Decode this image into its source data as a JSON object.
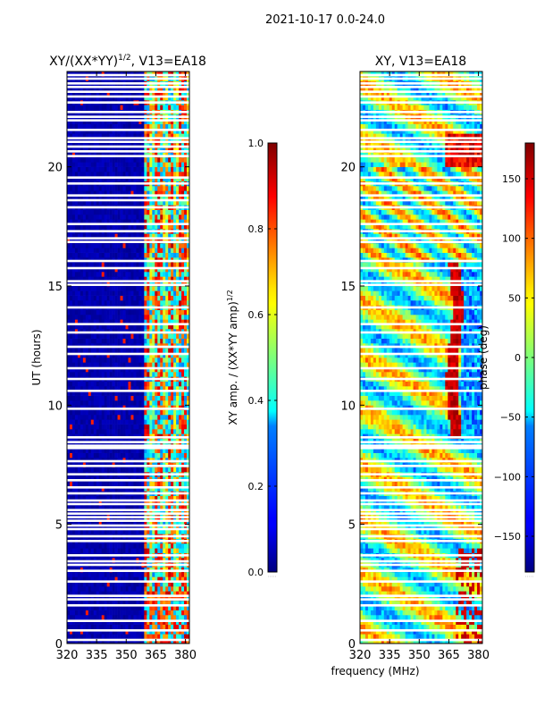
{
  "figure": {
    "suptitle": "2021-10-17 0.0-24.0",
    "xlabel": "frequency (MHz)"
  },
  "chart_data": [
    {
      "type": "heatmap",
      "title_main": "XY/(XX*YY)",
      "title_sup": "1/2",
      "title_tail": ", V13=EA18",
      "xlabel": "",
      "ylabel": "UT (hours)",
      "xlim": [
        320,
        382
      ],
      "ylim": [
        0,
        24
      ],
      "xticks": [
        320,
        335,
        350,
        365,
        380
      ],
      "xtick_labels": [
        "320",
        "335",
        "350",
        "365",
        "380"
      ],
      "yticks": [
        0,
        5,
        10,
        15,
        20
      ],
      "ytick_labels": [
        "0",
        "5",
        "10",
        "15",
        "20"
      ],
      "colormap": "jet",
      "colorbar": {
        "label_main": "XY amp. / (XX*YY amp)",
        "label_sup": "1/2",
        "vmin": 0.0,
        "vmax": 1.0,
        "ticks": [
          0.0,
          0.2,
          0.4,
          0.6,
          0.8,
          1.0
        ],
        "tick_labels": [
          "0.0",
          "0.2",
          "0.4",
          "0.6",
          "0.8",
          "1.0"
        ]
      },
      "description_values": {
        "background_value": 0.0,
        "rfi_band_MHz": [
          359,
          382
        ],
        "rfi_band_value_range": [
          0.3,
          0.9
        ]
      }
    },
    {
      "type": "heatmap",
      "title": "XY, V13=EA18",
      "xlabel": "",
      "ylabel": "",
      "xlim": [
        320,
        382
      ],
      "ylim": [
        0,
        24
      ],
      "xticks": [
        320,
        335,
        350,
        365,
        380
      ],
      "xtick_labels": [
        "320",
        "335",
        "350",
        "365",
        "380"
      ],
      "yticks": [
        0,
        5,
        10,
        15,
        20
      ],
      "ytick_labels": [
        "0",
        "5",
        "10",
        "15",
        "20"
      ],
      "colormap": "jet",
      "colorbar": {
        "label": "phase (deg)",
        "vmin": -180,
        "vmax": 180,
        "ticks": [
          -150,
          -100,
          -50,
          0,
          50,
          100,
          150
        ],
        "tick_labels": [
          "−150",
          "−100",
          "−50",
          "0",
          "50",
          "100",
          "150"
        ]
      },
      "description_values": {
        "phase_range_deg": [
          -180,
          180
        ],
        "ridge_MHz": 368
      }
    }
  ],
  "gap_rows_hours": [
    0.15,
    0.55,
    0.95,
    1.6,
    1.85,
    2.0,
    2.6,
    3.05,
    3.3,
    3.45,
    3.7,
    4.3,
    4.5,
    4.8,
    4.95,
    5.15,
    5.3,
    5.45,
    5.6,
    5.85,
    6.0,
    6.3,
    6.55,
    6.85,
    7.1,
    7.45,
    7.65,
    8.2,
    8.3,
    8.45,
    8.65,
    9.85,
    10.6,
    11.1,
    11.55,
    12.15,
    12.45,
    13.05,
    13.4,
    14.1,
    15.05,
    15.2,
    15.75,
    16.05,
    16.85,
    17.0,
    17.3,
    17.6,
    18.3,
    18.6,
    18.8,
    19.3,
    19.55,
    20.45,
    20.65,
    20.85,
    21.05,
    21.2,
    21.55,
    21.95,
    22.1,
    22.3,
    22.7,
    22.95,
    23.15,
    23.35,
    23.5,
    23.7,
    23.85
  ]
}
